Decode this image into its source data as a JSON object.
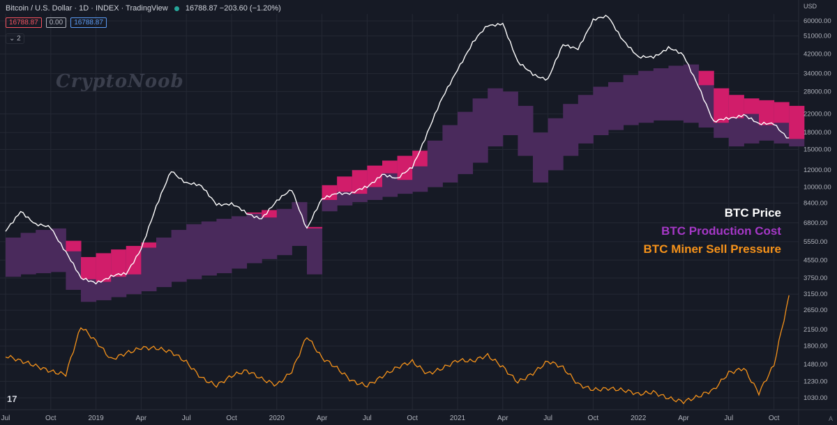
{
  "header": {
    "symbol": "Bitcoin / U.S. Dollar · 1D · INDEX · TradingView",
    "last": "16788.87",
    "change": "−203.60 (−1.20%)",
    "tag_red": "16788.87",
    "tag_zero": "0.00",
    "tag_blue": "16788.87",
    "collapse_label": "2"
  },
  "watermark": "CryptoNoob",
  "tv_logo": "17",
  "auto_label": "A",
  "currency": "USD",
  "legend": [
    {
      "label": "BTC Price",
      "color": "#ffffff"
    },
    {
      "label": "BTC Production Cost",
      "color": "#a638c7"
    },
    {
      "label": "BTC Miner Sell Pressure",
      "color": "#f7931a"
    }
  ],
  "colors": {
    "price": "#ffffff",
    "cost_band": "#4a2a5c",
    "cost_above_price": "#d11d6a",
    "sell_pressure": "#f7931a",
    "grid": "#242834"
  },
  "chart_data": {
    "type": "line",
    "y_scale": "log",
    "y_ticks": [
      "60000.00",
      "51000.00",
      "42000.00",
      "34000.00",
      "28000.00",
      "22000.00",
      "18000.00",
      "15000.00",
      "12000.00",
      "10000.00",
      "8400.00",
      "6800.00",
      "5550.00",
      "4550.00",
      "3750.00",
      "3150.00",
      "2650.00",
      "2150.00",
      "1800.00",
      "1480.00",
      "1230.00",
      "1030.00"
    ],
    "x_ticks": [
      "Jul",
      "Oct",
      "2019",
      "Apr",
      "Jul",
      "Oct",
      "2020",
      "Apr",
      "Jul",
      "Oct",
      "2021",
      "Apr",
      "Jul",
      "Oct",
      "2022",
      "Apr",
      "Jul",
      "Oct"
    ],
    "series": [
      {
        "name": "BTC Price",
        "x": [
          "2018-07",
          "2018-08",
          "2018-09",
          "2018-10",
          "2018-11",
          "2018-12",
          "2019-01",
          "2019-02",
          "2019-03",
          "2019-04",
          "2019-05",
          "2019-06",
          "2019-07",
          "2019-08",
          "2019-09",
          "2019-10",
          "2019-11",
          "2019-12",
          "2020-01",
          "2020-02",
          "2020-03",
          "2020-04",
          "2020-05",
          "2020-06",
          "2020-07",
          "2020-08",
          "2020-09",
          "2020-10",
          "2020-11",
          "2020-12",
          "2021-01",
          "2021-02",
          "2021-03",
          "2021-04",
          "2021-05",
          "2021-06",
          "2021-07",
          "2021-08",
          "2021-09",
          "2021-10",
          "2021-11",
          "2021-12",
          "2022-01",
          "2022-02",
          "2022-03",
          "2022-04",
          "2022-05",
          "2022-06",
          "2022-07",
          "2022-08",
          "2022-09",
          "2022-10",
          "2022-11"
        ],
        "values": [
          6200,
          7800,
          6600,
          6500,
          5000,
          3700,
          3600,
          3800,
          3900,
          5200,
          8000,
          12000,
          10500,
          10000,
          8400,
          8300,
          7500,
          7200,
          8500,
          9800,
          6400,
          8700,
          9500,
          9300,
          10000,
          11600,
          10800,
          12500,
          18000,
          26000,
          36000,
          47000,
          57000,
          59000,
          38000,
          34000,
          32000,
          46000,
          45000,
          60000,
          63000,
          49000,
          40000,
          41000,
          45000,
          41000,
          30000,
          20000,
          21000,
          22000,
          19500,
          20000,
          16800
        ]
      },
      {
        "name": "BTC Production Cost",
        "x": [
          "2018-07",
          "2018-08",
          "2018-09",
          "2018-10",
          "2018-11",
          "2018-12",
          "2019-01",
          "2019-02",
          "2019-03",
          "2019-04",
          "2019-05",
          "2019-06",
          "2019-07",
          "2019-08",
          "2019-09",
          "2019-10",
          "2019-11",
          "2019-12",
          "2020-01",
          "2020-02",
          "2020-03",
          "2020-04",
          "2020-05",
          "2020-06",
          "2020-07",
          "2020-08",
          "2020-09",
          "2020-10",
          "2020-11",
          "2020-12",
          "2021-01",
          "2021-02",
          "2021-03",
          "2021-04",
          "2021-05",
          "2021-06",
          "2021-07",
          "2021-08",
          "2021-09",
          "2021-10",
          "2021-11",
          "2021-12",
          "2022-01",
          "2022-02",
          "2022-03",
          "2022-04",
          "2022-05",
          "2022-06",
          "2022-07",
          "2022-08",
          "2022-09",
          "2022-10",
          "2022-11"
        ],
        "low": [
          3800,
          3900,
          3950,
          4000,
          3300,
          2900,
          2950,
          3050,
          3150,
          3250,
          3400,
          3600,
          3700,
          3850,
          3950,
          4150,
          4400,
          4600,
          4800,
          5300,
          3900,
          7700,
          8200,
          8500,
          8700,
          9000,
          9300,
          9500,
          10000,
          10500,
          11500,
          13000,
          15500,
          17500,
          14000,
          10500,
          12000,
          14000,
          16000,
          17500,
          18500,
          19500,
          20000,
          20500,
          20500,
          20000,
          19000,
          17000,
          15500,
          16000,
          16500,
          16000,
          15500
        ],
        "high": [
          5800,
          6100,
          6300,
          6400,
          5600,
          4700,
          4900,
          5100,
          5300,
          5500,
          5800,
          6300,
          6700,
          6900,
          7100,
          7300,
          7600,
          7800,
          7900,
          8500,
          6500,
          10200,
          11200,
          12000,
          12600,
          13300,
          14000,
          14800,
          16500,
          19500,
          22500,
          26000,
          29000,
          28000,
          24000,
          18000,
          21000,
          24500,
          27000,
          29500,
          31000,
          33500,
          35000,
          36000,
          37000,
          37500,
          35000,
          29000,
          27000,
          26000,
          25500,
          25000,
          24000
        ]
      },
      {
        "name": "BTC Miner Sell Pressure",
        "x": [
          "2018-07",
          "2018-08",
          "2018-09",
          "2018-10",
          "2018-11",
          "2018-12",
          "2019-01",
          "2019-02",
          "2019-03",
          "2019-04",
          "2019-05",
          "2019-06",
          "2019-07",
          "2019-08",
          "2019-09",
          "2019-10",
          "2019-11",
          "2019-12",
          "2020-01",
          "2020-02",
          "2020-03",
          "2020-04",
          "2020-05",
          "2020-06",
          "2020-07",
          "2020-08",
          "2020-09",
          "2020-10",
          "2020-11",
          "2020-12",
          "2021-01",
          "2021-02",
          "2021-03",
          "2021-04",
          "2021-05",
          "2021-06",
          "2021-07",
          "2021-08",
          "2021-09",
          "2021-10",
          "2021-11",
          "2021-12",
          "2022-01",
          "2022-02",
          "2022-03",
          "2022-04",
          "2022-05",
          "2022-06",
          "2022-07",
          "2022-08",
          "2022-09",
          "2022-10",
          "2022-11"
        ],
        "values": [
          1600,
          1500,
          1450,
          1400,
          1350,
          2200,
          1850,
          1550,
          1700,
          1800,
          1750,
          1650,
          1500,
          1300,
          1200,
          1300,
          1350,
          1250,
          1200,
          1400,
          2000,
          1550,
          1400,
          1250,
          1200,
          1300,
          1400,
          1500,
          1350,
          1450,
          1550,
          1500,
          1600,
          1450,
          1250,
          1350,
          1500,
          1400,
          1200,
          1150,
          1150,
          1100,
          1050,
          1100,
          1050,
          1000,
          1030,
          1100,
          1350,
          1450,
          1100,
          1450,
          3000
        ]
      }
    ]
  }
}
